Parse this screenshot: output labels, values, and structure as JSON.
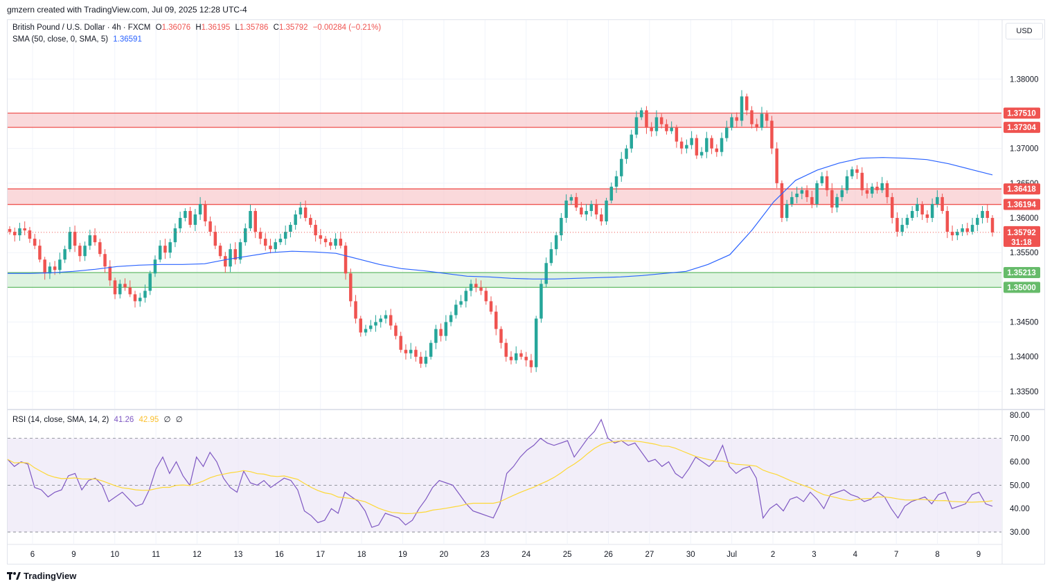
{
  "header": {
    "attribution": "gmzern created with TradingView.com, Jul 09, 2025 12:28 UTC-4"
  },
  "legend": {
    "symbol": "British Pound / U.S. Dollar · 4h · FXCM",
    "open_label": "O",
    "open": "1.36076",
    "high_label": "H",
    "high": "1.36195",
    "low_label": "L",
    "low": "1.35786",
    "close_label": "C",
    "close": "1.35792",
    "change": "−0.00284 (−0.21%)",
    "sma_label": "SMA (50, close, 0, SMA, 5)",
    "sma_value": "1.36591",
    "rsi_label": "RSI (14, close, SMA, 14, 2)",
    "rsi_value": "41.26",
    "rsi_sma_value": "42.95",
    "rsi_extra1": "∅",
    "rsi_extra2": "∅"
  },
  "currency": "USD",
  "footer": {
    "brand": "TradingView",
    "logo_icon": "tradingview-logo-icon"
  },
  "colors": {
    "up": "#26a69a",
    "down": "#ef5350",
    "sma": "#2962ff",
    "rsi": "#7e57c2",
    "rsi_sma": "#fdd835",
    "resistance_zone": "#f7c5c8",
    "support_zone": "#cdeccf",
    "resistance_line": "#ef5350",
    "support_line": "#66bb6a"
  },
  "chart_data": [
    {
      "type": "candlestick",
      "title": "",
      "ylim": [
        1.3325,
        1.3885
      ],
      "price_ticks": [
        "1.38000",
        "1.37000",
        "1.36500",
        "1.36000",
        "1.35500",
        "1.34500",
        "1.34000",
        "1.33500"
      ],
      "x_ticks": [
        "6",
        "9",
        "10",
        "11",
        "12",
        "13",
        "16",
        "17",
        "18",
        "19",
        "20",
        "23",
        "24",
        "25",
        "26",
        "27",
        "30",
        "Jul",
        "2",
        "3",
        "4",
        "7",
        "8",
        "9"
      ],
      "current_price": "1.35792",
      "countdown": "31:18",
      "levels": [
        {
          "label": "1.37510",
          "value": 1.3751,
          "kind": "resistance"
        },
        {
          "label": "1.37304",
          "value": 1.37304,
          "kind": "resistance"
        },
        {
          "label": "1.36418",
          "value": 1.36418,
          "kind": "resistance"
        },
        {
          "label": "1.36194",
          "value": 1.36194,
          "kind": "resistance"
        },
        {
          "label": "1.35213",
          "value": 1.35213,
          "kind": "support"
        },
        {
          "label": "1.35000",
          "value": 1.35,
          "kind": "support"
        }
      ],
      "zones": [
        {
          "from": 1.37304,
          "to": 1.3751,
          "kind": "resistance"
        },
        {
          "from": 1.36194,
          "to": 1.36418,
          "kind": "resistance"
        },
        {
          "from": 1.35,
          "to": 1.35213,
          "kind": "support"
        }
      ],
      "close_path": [
        1.358,
        1.3575,
        1.3585,
        1.3582,
        1.357,
        1.356,
        1.354,
        1.352,
        1.353,
        1.3525,
        1.354,
        1.3555,
        1.358,
        1.356,
        1.3545,
        1.356,
        1.3575,
        1.3565,
        1.3548,
        1.353,
        1.351,
        1.349,
        1.3505,
        1.35,
        1.349,
        1.348,
        1.3485,
        1.3495,
        1.352,
        1.354,
        1.356,
        1.355,
        1.3565,
        1.3585,
        1.36,
        1.361,
        1.359,
        1.3605,
        1.362,
        1.3595,
        1.358,
        1.356,
        1.3545,
        1.353,
        1.3555,
        1.354,
        1.3565,
        1.3585,
        1.361,
        1.358,
        1.357,
        1.356,
        1.3555,
        1.3565,
        1.357,
        1.358,
        1.359,
        1.3605,
        1.3615,
        1.36,
        1.359,
        1.3575,
        1.357,
        1.3565,
        1.356,
        1.357,
        1.356,
        1.352,
        1.348,
        1.3455,
        1.3435,
        1.344,
        1.3445,
        1.345,
        1.3455,
        1.346,
        1.3445,
        1.343,
        1.341,
        1.3405,
        1.341,
        1.34,
        1.339,
        1.34,
        1.342,
        1.344,
        1.343,
        1.345,
        1.346,
        1.3475,
        1.348,
        1.3495,
        1.3505,
        1.35,
        1.3495,
        1.348,
        1.3465,
        1.344,
        1.342,
        1.34,
        1.3395,
        1.3405,
        1.34,
        1.3395,
        1.3385,
        1.3455,
        1.3505,
        1.3535,
        1.3555,
        1.3575,
        1.36,
        1.3625,
        1.363,
        1.3615,
        1.3605,
        1.361,
        1.362,
        1.3605,
        1.3595,
        1.3625,
        1.3645,
        1.366,
        1.3685,
        1.37,
        1.372,
        1.3745,
        1.3755,
        1.373,
        1.3725,
        1.3745,
        1.3735,
        1.3725,
        1.373,
        1.371,
        1.37,
        1.3705,
        1.3715,
        1.369,
        1.3695,
        1.3715,
        1.37,
        1.3695,
        1.3715,
        1.373,
        1.3745,
        1.374,
        1.3775,
        1.3755,
        1.3735,
        1.373,
        1.375,
        1.374,
        1.37,
        1.365,
        1.36,
        1.362,
        1.363,
        1.3635,
        1.364,
        1.363,
        1.362,
        1.365,
        1.366,
        1.364,
        1.3615,
        1.363,
        1.364,
        1.366,
        1.367,
        1.3665,
        1.364,
        1.3635,
        1.3645,
        1.364,
        1.365,
        1.363,
        1.36,
        1.358,
        1.359,
        1.36,
        1.361,
        1.362,
        1.3605,
        1.36,
        1.362,
        1.363,
        1.361,
        1.358,
        1.3575,
        1.358,
        1.3585,
        1.358,
        1.359,
        1.36,
        1.361,
        1.36,
        1.35792
      ],
      "sma_path": [
        1.352,
        1.352,
        1.3521,
        1.3523,
        1.3526,
        1.353,
        1.3532,
        1.3533,
        1.3533,
        1.3534,
        1.354,
        1.3545,
        1.355,
        1.3552,
        1.3551,
        1.3549,
        1.3541,
        1.3533,
        1.3527,
        1.3524,
        1.352,
        1.3516,
        1.3515,
        1.3513,
        1.3512,
        1.3512,
        1.3513,
        1.3514,
        1.3515,
        1.3517,
        1.352,
        1.3523,
        1.3533,
        1.3547,
        1.3582,
        1.3623,
        1.3654,
        1.3669,
        1.3679,
        1.3686,
        1.3687,
        1.3686,
        1.3684,
        1.3678,
        1.367,
        1.3662
      ],
      "rsi_range": [
        25,
        82
      ],
      "rsi_ticks": [
        "80.00",
        "70.00",
        "60.00",
        "50.00",
        "40.00",
        "30.00"
      ],
      "rsi_bands": {
        "upper": 70,
        "middle": 50,
        "lower": 30
      },
      "rsi_path": [
        61,
        58,
        60,
        59,
        49,
        48,
        45,
        47,
        48,
        54,
        55,
        48,
        52,
        53,
        50,
        43,
        45,
        47,
        44,
        41,
        42,
        48,
        57,
        62,
        55,
        60,
        54,
        50,
        62,
        58,
        64,
        60,
        53,
        49,
        47,
        56,
        51,
        50,
        52,
        49,
        51,
        53,
        52,
        48,
        39,
        37,
        34,
        35,
        40,
        38,
        47,
        45,
        43,
        39,
        32,
        33,
        38,
        37,
        36,
        33,
        35,
        40,
        44,
        49,
        52,
        51,
        50,
        46,
        42,
        39,
        38,
        37,
        36,
        42,
        55,
        58,
        62,
        65,
        67,
        70,
        68,
        67,
        68,
        69,
        62,
        66,
        70,
        73,
        78,
        70,
        68,
        69,
        67,
        68,
        64,
        60,
        61,
        58,
        60,
        55,
        53,
        57,
        62,
        60,
        58,
        61,
        67,
        58,
        55,
        57,
        58,
        53,
        36,
        40,
        42,
        39,
        44,
        45,
        43,
        47,
        44,
        40,
        46,
        47,
        48,
        46,
        45,
        43,
        44,
        47,
        45,
        40,
        36,
        41,
        43,
        44,
        45,
        42,
        46,
        47,
        40,
        41,
        42,
        46,
        47,
        42,
        41
      ]
    }
  ]
}
